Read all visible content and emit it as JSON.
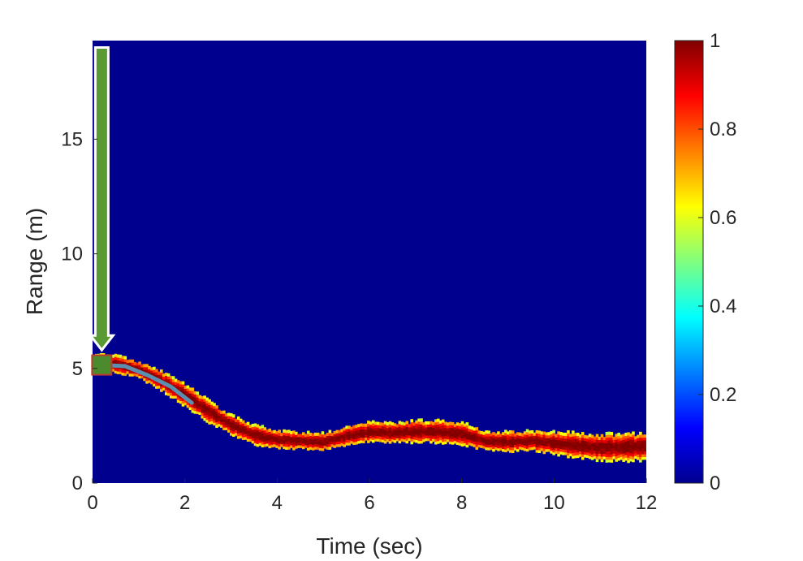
{
  "chart_data": {
    "type": "heatmap",
    "xlabel": "Time (sec)",
    "ylabel": "Range (m)",
    "xlim": [
      0,
      12
    ],
    "ylim": [
      0,
      19.3
    ],
    "x_ticks": [
      "0",
      "2",
      "4",
      "6",
      "8",
      "10",
      "12"
    ],
    "y_ticks": [
      "0",
      "5",
      "10",
      "15"
    ],
    "colorbar": {
      "colormap": "jet",
      "range": [
        0,
        1
      ],
      "ticks": [
        "0",
        "0.2",
        "0.4",
        "0.6",
        "0.8",
        "1"
      ]
    },
    "background_value": 0,
    "trajectory": {
      "description_units": "time (sec), range (m), half-width (m)",
      "points": [
        {
          "t": 0.0,
          "r": 5.2,
          "w": 0.35
        },
        {
          "t": 0.5,
          "r": 5.15,
          "w": 0.35
        },
        {
          "t": 1.0,
          "r": 4.9,
          "w": 0.35
        },
        {
          "t": 1.5,
          "r": 4.4,
          "w": 0.4
        },
        {
          "t": 2.0,
          "r": 3.8,
          "w": 0.45
        },
        {
          "t": 2.5,
          "r": 3.1,
          "w": 0.45
        },
        {
          "t": 3.0,
          "r": 2.5,
          "w": 0.4
        },
        {
          "t": 3.5,
          "r": 2.05,
          "w": 0.4
        },
        {
          "t": 4.0,
          "r": 1.85,
          "w": 0.35
        },
        {
          "t": 4.5,
          "r": 1.8,
          "w": 0.35
        },
        {
          "t": 5.0,
          "r": 1.75,
          "w": 0.35
        },
        {
          "t": 5.5,
          "r": 2.0,
          "w": 0.4
        },
        {
          "t": 6.0,
          "r": 2.2,
          "w": 0.4
        },
        {
          "t": 6.5,
          "r": 2.15,
          "w": 0.4
        },
        {
          "t": 7.0,
          "r": 2.2,
          "w": 0.45
        },
        {
          "t": 7.5,
          "r": 2.2,
          "w": 0.45
        },
        {
          "t": 8.0,
          "r": 2.1,
          "w": 0.45
        },
        {
          "t": 8.5,
          "r": 1.8,
          "w": 0.4
        },
        {
          "t": 9.0,
          "r": 1.75,
          "w": 0.4
        },
        {
          "t": 9.5,
          "r": 1.8,
          "w": 0.4
        },
        {
          "t": 10.0,
          "r": 1.7,
          "w": 0.45
        },
        {
          "t": 10.5,
          "r": 1.6,
          "w": 0.5
        },
        {
          "t": 11.0,
          "r": 1.5,
          "w": 0.55
        },
        {
          "t": 12.0,
          "r": 1.55,
          "w": 0.55
        }
      ]
    },
    "estimated_track": {
      "color": "#5b8fb0",
      "points": [
        [
          0.2,
          5.15
        ],
        [
          0.7,
          5.1
        ],
        [
          1.2,
          4.7
        ],
        [
          1.7,
          4.2
        ],
        [
          2.15,
          3.5
        ]
      ]
    },
    "start_marker": {
      "t": 0.2,
      "r": 5.15,
      "fill": "#4c8a2e",
      "stroke": "#c0392b"
    },
    "arrow": {
      "t": 0.2,
      "r_top": 19.0,
      "r_tip": 5.8,
      "fill": "#5a9a32",
      "stroke": "#ffffff"
    }
  },
  "colors": {
    "background": "#00008f",
    "axis_text": "#262626"
  }
}
